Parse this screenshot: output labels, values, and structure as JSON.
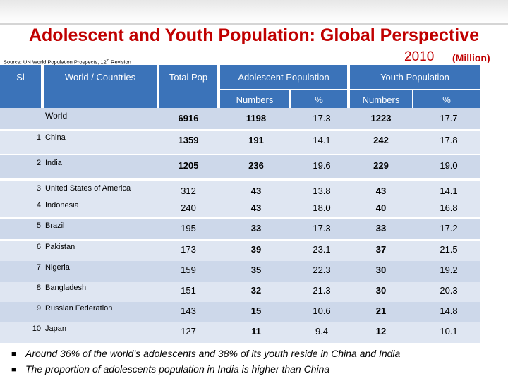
{
  "title": "Adolescent and Youth Population: Global Perspective",
  "source": "Source: UN World Population Prospects, 12",
  "source_sup": "th",
  "source_tail": " Revision",
  "year": "2010",
  "unit": "(Million)",
  "headers": {
    "sl": "Sl",
    "country": "World / Countries",
    "total": "Total Pop",
    "adolescent": "Adolescent Population",
    "youth": "Youth Population",
    "numbers": "Numbers",
    "percent": "%"
  },
  "rows": [
    {
      "sl": "",
      "name": "World",
      "total": "6916",
      "adol_num": "1198",
      "adol_pct": "17.3",
      "youth_num": "1223",
      "youth_pct": "17.7"
    },
    {
      "sl": "1",
      "name": "China",
      "total": "1359",
      "adol_num": "191",
      "adol_pct": "14.1",
      "youth_num": "242",
      "youth_pct": "17.8"
    },
    {
      "sl": "2",
      "name": "India",
      "total": "1205",
      "adol_num": "236",
      "adol_pct": "19.6",
      "youth_num": "229",
      "youth_pct": "19.0"
    },
    {
      "sl": "3",
      "name": "United States of America",
      "total": "312",
      "adol_num": "43",
      "adol_pct": "13.8",
      "youth_num": "43",
      "youth_pct": "14.1"
    },
    {
      "sl": "4",
      "name": "Indonesia",
      "total": "240",
      "adol_num": "43",
      "adol_pct": "18.0",
      "youth_num": "40",
      "youth_pct": "16.8"
    },
    {
      "sl": "5",
      "name": "Brazil",
      "total": "195",
      "adol_num": "33",
      "adol_pct": "17.3",
      "youth_num": "33",
      "youth_pct": "17.2"
    },
    {
      "sl": "6",
      "name": "Pakistan",
      "total": "173",
      "adol_num": "39",
      "adol_pct": "23.1",
      "youth_num": "37",
      "youth_pct": "21.5"
    },
    {
      "sl": "7",
      "name": "Nigeria",
      "total": "159",
      "adol_num": "35",
      "adol_pct": "22.3",
      "youth_num": "30",
      "youth_pct": "19.2"
    },
    {
      "sl": "8",
      "name": "Bangladesh",
      "total": "151",
      "adol_num": "32",
      "adol_pct": "21.3",
      "youth_num": "30",
      "youth_pct": "20.3"
    },
    {
      "sl": "9",
      "name": "Russian Federation",
      "total": "143",
      "adol_num": "15",
      "adol_pct": "10.6",
      "youth_num": "21",
      "youth_pct": "14.8"
    },
    {
      "sl": "10",
      "name": "Japan",
      "total": "127",
      "adol_num": "11",
      "adol_pct": "9.4",
      "youth_num": "12",
      "youth_pct": "10.1"
    }
  ],
  "bullets": [
    "Around 36% of the world’s adolescents and 38% of  its youth reside in China and India",
    "The proportion of adolescents population in India is higher than China"
  ],
  "colors": {
    "title": "#c00000",
    "header_bg": "#3b73b9",
    "band_light": "#dfe6f2",
    "band_dark": "#cdd8ea"
  }
}
